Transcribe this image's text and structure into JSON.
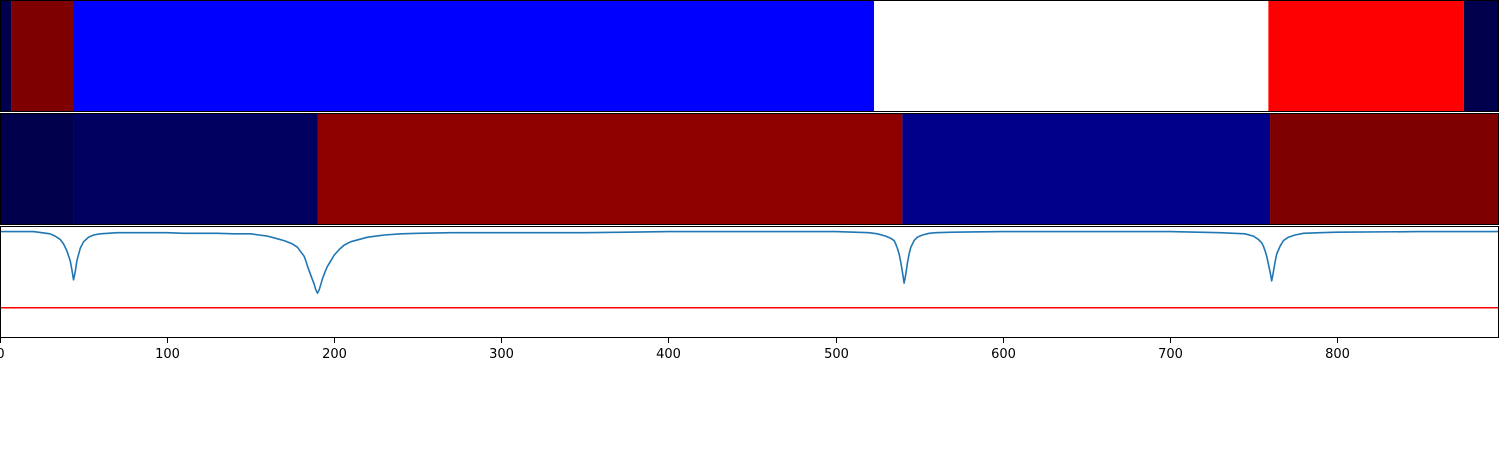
{
  "chart_data": [
    {
      "type": "heatmap",
      "panel": "top",
      "x_range": [
        0,
        897
      ],
      "colormap": "seismic",
      "segments": [
        {
          "start": 0,
          "end": 7,
          "value": 0.07,
          "color": "#00004c"
        },
        {
          "start": 7,
          "end": 44,
          "value": 0.95,
          "color": "#7f0000"
        },
        {
          "start": 44,
          "end": 523,
          "value": 0.25,
          "color": "#0000ff"
        },
        {
          "start": 523,
          "end": 759,
          "value": 0.5,
          "color": "#ffffff"
        },
        {
          "start": 759,
          "end": 876,
          "value": 0.75,
          "color": "#ff0000"
        },
        {
          "start": 876,
          "end": 897,
          "value": 0.07,
          "color": "#00004c"
        }
      ]
    },
    {
      "type": "heatmap",
      "panel": "middle",
      "x_range": [
        0,
        897
      ],
      "colormap": "seismic",
      "segments": [
        {
          "start": 0,
          "end": 44,
          "value": 0.07,
          "color": "#00004c"
        },
        {
          "start": 44,
          "end": 190,
          "value": 0.09,
          "color": "#000060"
        },
        {
          "start": 190,
          "end": 540,
          "value": 0.93,
          "color": "#8f0000"
        },
        {
          "start": 540,
          "end": 760,
          "value": 0.12,
          "color": "#00008a"
        },
        {
          "start": 760,
          "end": 897,
          "value": 0.95,
          "color": "#7f0000"
        }
      ]
    },
    {
      "type": "line",
      "panel": "bottom",
      "x_range": [
        0,
        897
      ],
      "ylim": [
        -0.95,
        0.05
      ],
      "threshold": {
        "value": -0.68,
        "color": "#ff0000"
      },
      "series": [
        {
          "name": "signal",
          "color": "#1f77b4",
          "x": [
            0,
            10,
            20,
            25,
            30,
            33,
            36,
            38,
            40,
            42,
            43,
            44,
            45,
            46,
            48,
            50,
            53,
            56,
            60,
            70,
            80,
            90,
            95,
            100,
            110,
            120,
            130,
            140,
            150,
            155,
            160,
            165,
            170,
            175,
            178,
            180,
            182,
            183,
            184,
            185,
            186,
            187,
            188,
            189,
            190,
            191,
            192,
            193,
            194,
            195,
            196,
            198,
            200,
            203,
            206,
            210,
            220,
            230,
            240,
            250,
            270,
            300,
            350,
            400,
            450,
            500,
            520,
            525,
            530,
            533,
            535,
            536,
            537,
            538,
            539,
            540,
            541,
            542,
            543,
            544,
            545,
            547,
            549,
            552,
            556,
            560,
            570,
            600,
            650,
            700,
            730,
            745,
            750,
            753,
            755,
            756,
            757,
            758,
            759,
            760,
            761,
            762,
            763,
            764,
            766,
            768,
            771,
            775,
            780,
            790,
            800,
            850,
            897
          ],
          "y": [
            0,
            0,
            0,
            -0.01,
            -0.02,
            -0.04,
            -0.07,
            -0.11,
            -0.17,
            -0.26,
            -0.34,
            -0.43,
            -0.36,
            -0.26,
            -0.15,
            -0.09,
            -0.05,
            -0.03,
            -0.02,
            -0.01,
            -0.01,
            -0.01,
            -0.01,
            -0.01,
            -0.015,
            -0.015,
            -0.015,
            -0.02,
            -0.02,
            -0.03,
            -0.04,
            -0.06,
            -0.08,
            -0.11,
            -0.14,
            -0.18,
            -0.22,
            -0.26,
            -0.31,
            -0.35,
            -0.39,
            -0.43,
            -0.47,
            -0.52,
            -0.55,
            -0.52,
            -0.47,
            -0.42,
            -0.38,
            -0.34,
            -0.31,
            -0.26,
            -0.21,
            -0.16,
            -0.12,
            -0.09,
            -0.05,
            -0.03,
            -0.02,
            -0.015,
            -0.01,
            -0.01,
            -0.01,
            0,
            0,
            0,
            -0.01,
            -0.02,
            -0.04,
            -0.06,
            -0.08,
            -0.11,
            -0.15,
            -0.2,
            -0.27,
            -0.36,
            -0.46,
            -0.38,
            -0.28,
            -0.2,
            -0.14,
            -0.08,
            -0.05,
            -0.03,
            -0.015,
            -0.01,
            -0.005,
            0,
            0,
            0,
            -0.01,
            -0.02,
            -0.04,
            -0.07,
            -0.1,
            -0.13,
            -0.17,
            -0.22,
            -0.29,
            -0.36,
            -0.44,
            -0.36,
            -0.27,
            -0.2,
            -0.13,
            -0.08,
            -0.05,
            -0.03,
            -0.015,
            -0.01,
            -0.005,
            0,
            0
          ]
        }
      ]
    },
    {
      "type": "axis",
      "x_range": [
        0,
        897
      ],
      "ticks": [
        0,
        100,
        200,
        300,
        400,
        500,
        600,
        700,
        800
      ],
      "tick_labels": [
        "0",
        "100",
        "200",
        "300",
        "400",
        "500",
        "600",
        "700",
        "800"
      ]
    }
  ]
}
